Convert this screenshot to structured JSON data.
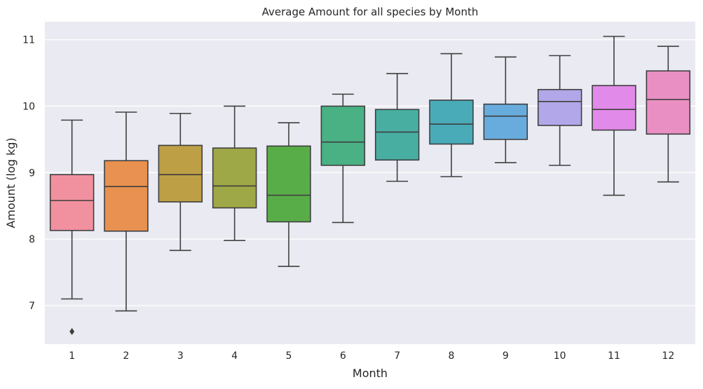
{
  "chart_data": {
    "type": "box",
    "title": "Average Amount for all species by Month",
    "xlabel": "Month",
    "ylabel": "Amount (log kg)",
    "ylim": [
      6.42,
      11.27
    ],
    "yticks": [
      7,
      8,
      9,
      10,
      11
    ],
    "categories": [
      "1",
      "2",
      "3",
      "4",
      "5",
      "6",
      "7",
      "8",
      "9",
      "10",
      "11",
      "12"
    ],
    "boxes": [
      {
        "whisker_low": 7.1,
        "q1": 8.13,
        "median": 8.58,
        "q3": 8.97,
        "whisker_high": 9.79,
        "outliers": [
          6.61
        ]
      },
      {
        "whisker_low": 6.92,
        "q1": 8.12,
        "median": 8.79,
        "q3": 9.18,
        "whisker_high": 9.91,
        "outliers": []
      },
      {
        "whisker_low": 7.83,
        "q1": 8.56,
        "median": 8.97,
        "q3": 9.41,
        "whisker_high": 9.89,
        "outliers": []
      },
      {
        "whisker_low": 7.98,
        "q1": 8.47,
        "median": 8.8,
        "q3": 9.37,
        "whisker_high": 10.0,
        "outliers": []
      },
      {
        "whisker_low": 7.59,
        "q1": 8.26,
        "median": 8.66,
        "q3": 9.4,
        "whisker_high": 9.75,
        "outliers": []
      },
      {
        "whisker_low": 8.25,
        "q1": 9.11,
        "median": 9.46,
        "q3": 10.0,
        "whisker_high": 10.18,
        "outliers": []
      },
      {
        "whisker_low": 8.87,
        "q1": 9.19,
        "median": 9.61,
        "q3": 9.95,
        "whisker_high": 10.49,
        "outliers": []
      },
      {
        "whisker_low": 8.94,
        "q1": 9.43,
        "median": 9.73,
        "q3": 10.09,
        "whisker_high": 10.79,
        "outliers": []
      },
      {
        "whisker_low": 9.15,
        "q1": 9.5,
        "median": 9.85,
        "q3": 10.03,
        "whisker_high": 10.74,
        "outliers": []
      },
      {
        "whisker_low": 9.11,
        "q1": 9.71,
        "median": 10.07,
        "q3": 10.25,
        "whisker_high": 10.76,
        "outliers": []
      },
      {
        "whisker_low": 8.66,
        "q1": 9.64,
        "median": 9.95,
        "q3": 10.31,
        "whisker_high": 11.05,
        "outliers": []
      },
      {
        "whisker_low": 8.86,
        "q1": 9.58,
        "median": 10.1,
        "q3": 10.53,
        "whisker_high": 10.9,
        "outliers": []
      }
    ],
    "colors": [
      "#f1919f",
      "#e89150",
      "#bd9f45",
      "#9fa846",
      "#59ad48",
      "#49b184",
      "#48aea2",
      "#49abb7",
      "#68acdd",
      "#b2a7e8",
      "#e28ae9",
      "#ea8fc4"
    ],
    "grid": true,
    "legend": "none"
  }
}
